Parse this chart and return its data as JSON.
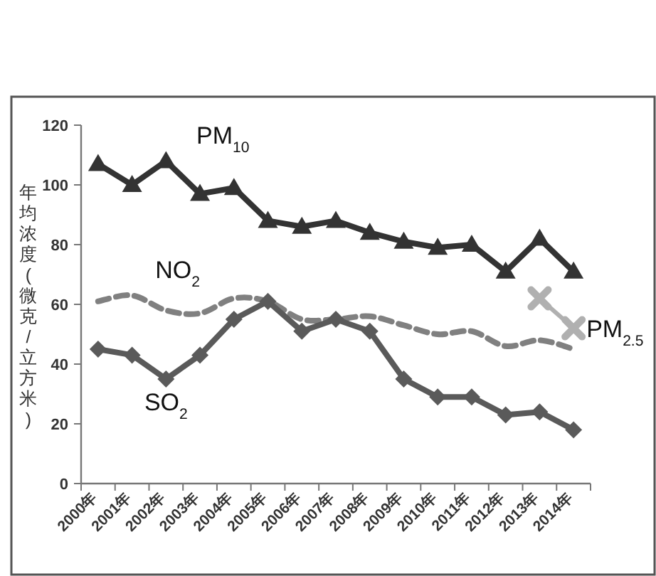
{
  "chart_data": {
    "type": "line",
    "ylabel": "年均浓度(微克/立方米)",
    "categories": [
      "2000年",
      "2001年",
      "2002年",
      "2003年",
      "2004年",
      "2005年",
      "2006年",
      "2007年",
      "2008年",
      "2009年",
      "2010年",
      "2011年",
      "2012年",
      "2013年",
      "2014年"
    ],
    "ylim": [
      0,
      120
    ],
    "yticks": [
      0,
      20,
      40,
      60,
      80,
      100,
      120
    ],
    "grid": false,
    "series": [
      {
        "name": "PM$_{10}$",
        "color": "#333333",
        "marker": "triangle",
        "line_style": "solid",
        "values": [
          107,
          100,
          108,
          97,
          99,
          88,
          86,
          88,
          84,
          81,
          79,
          80,
          71,
          82,
          71
        ]
      },
      {
        "name": "NO$_{2}$",
        "color": "#808080",
        "marker": "none",
        "line_style": "dashed",
        "values": [
          61,
          63,
          58,
          57,
          62,
          61,
          55,
          55,
          56,
          53,
          50,
          51,
          46,
          48,
          45
        ]
      },
      {
        "name": "SO$_{2}$",
        "color": "#5a5a5a",
        "marker": "diamond",
        "line_style": "solid",
        "values": [
          45,
          43,
          35,
          43,
          55,
          61,
          51,
          55,
          51,
          35,
          29,
          29,
          23,
          24,
          18
        ]
      },
      {
        "name": "PM$_{2.5}$",
        "color": "#b0b0b0",
        "marker": "cross",
        "line_style": "solid",
        "values": [
          null,
          null,
          null,
          null,
          null,
          null,
          null,
          null,
          null,
          null,
          null,
          null,
          null,
          62,
          52
        ]
      }
    ]
  }
}
